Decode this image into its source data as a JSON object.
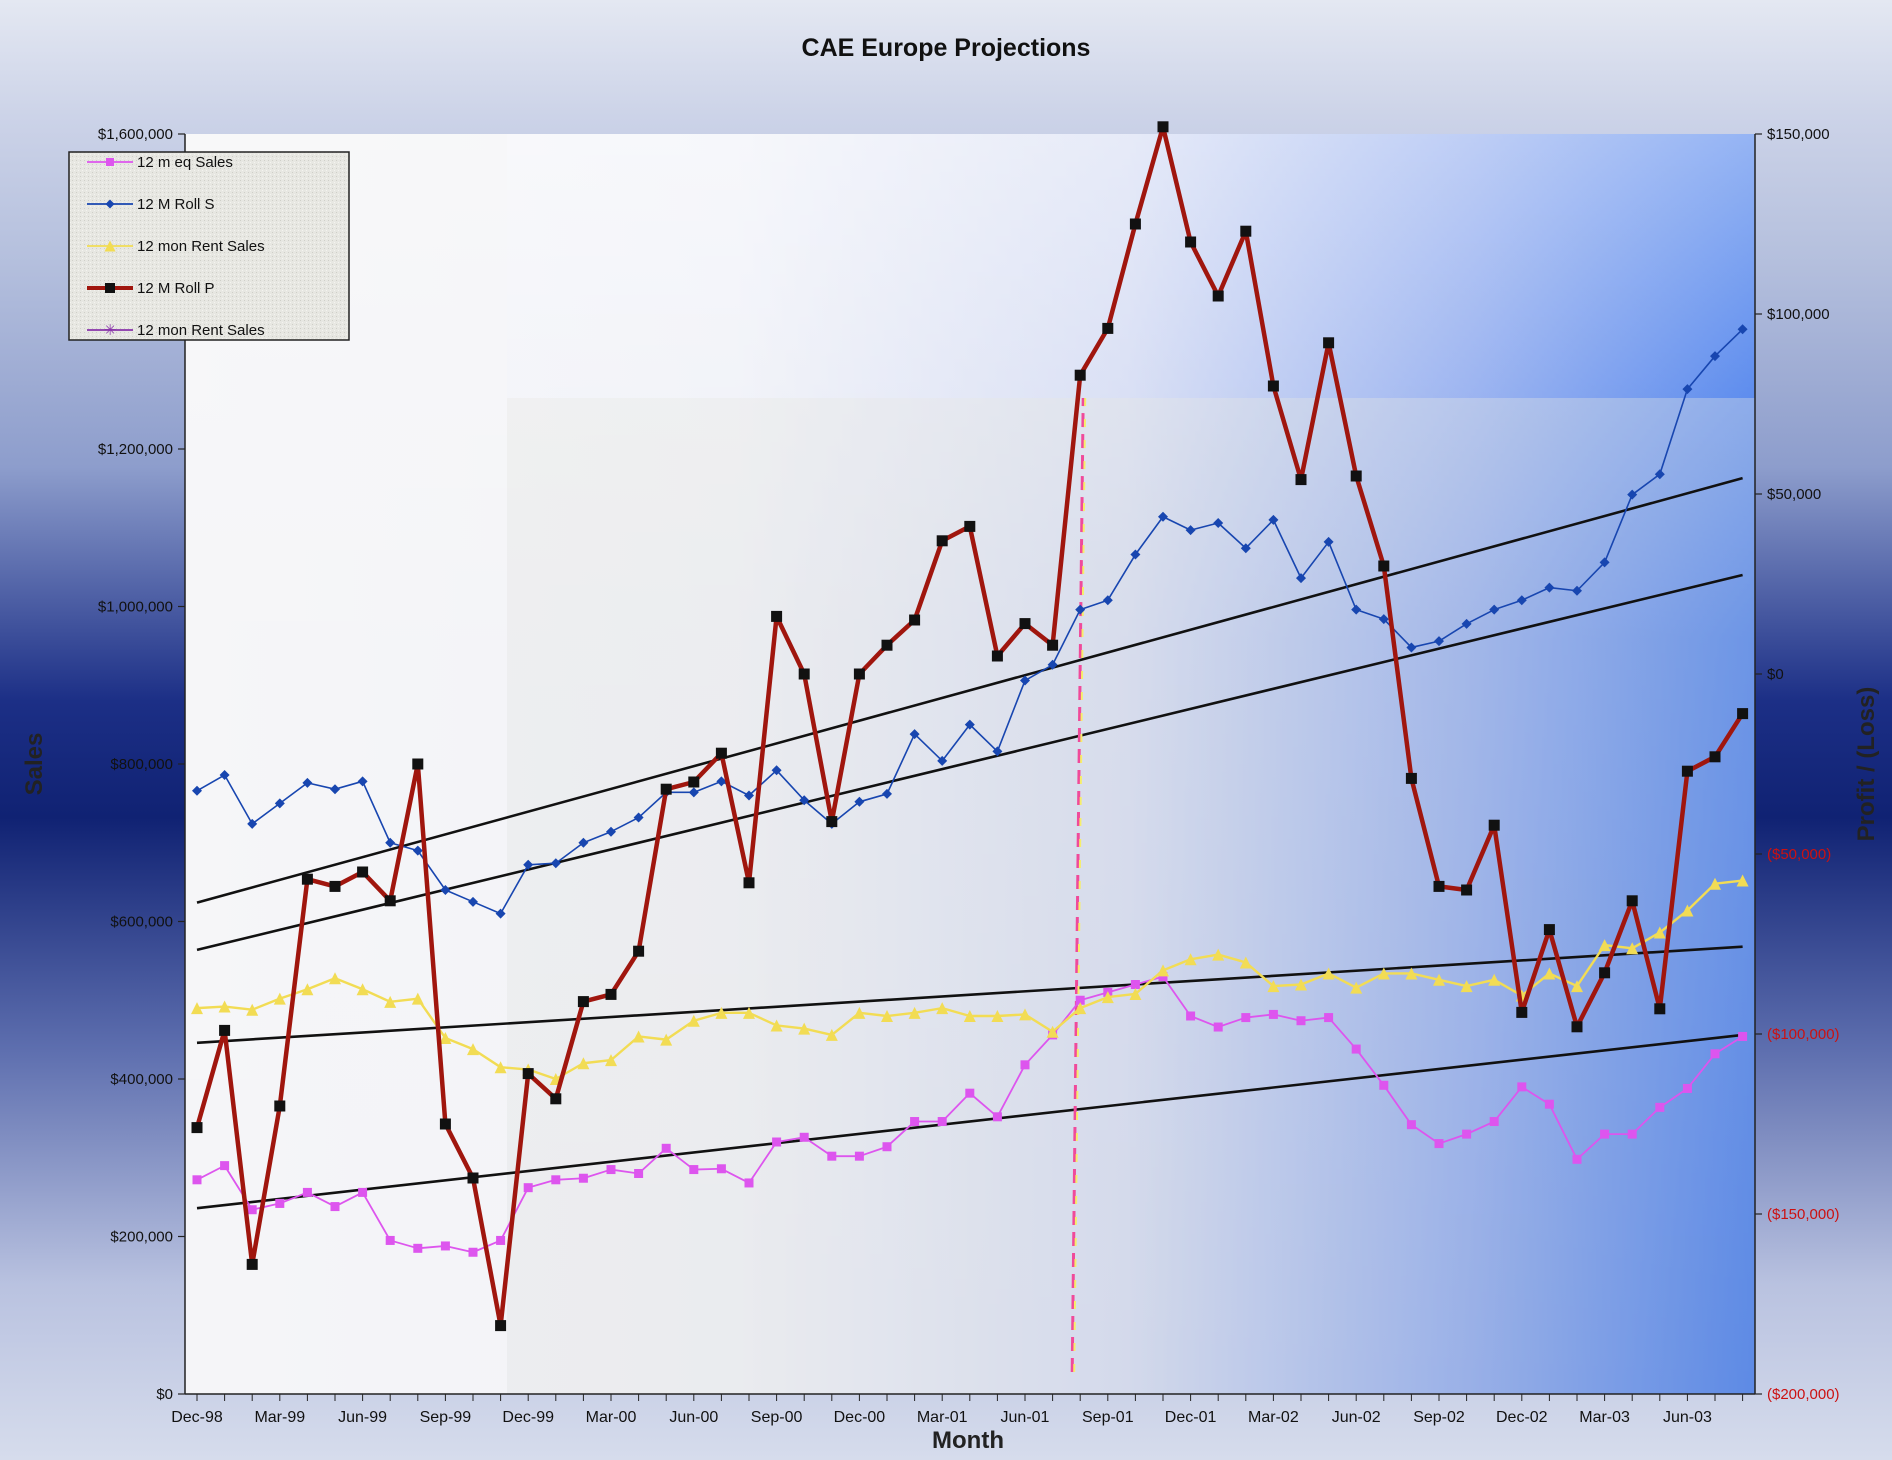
{
  "colors": {
    "eq_sales": "#dd55ee",
    "roll_s": "#1846b0",
    "rent_sales": "#f2dc54",
    "roll_p": "#a0160e",
    "rent_sales_2": "#8833aa",
    "trend": "#111111",
    "negative_tick": "#cc1111"
  },
  "chart_data": {
    "type": "line",
    "title": "CAE Europe Projections",
    "xlabel": "Month",
    "ylabel": "Sales",
    "y2label": "Profit / (Loss)",
    "ylim": [
      0,
      1600000
    ],
    "y2lim": [
      -200000,
      150000
    ],
    "y_ticks": [
      "$0",
      "$200,000",
      "$400,000",
      "$600,000",
      "$800,000",
      "$1,000,000",
      "$1,200,000",
      "$1,600,000"
    ],
    "y2_ticks": [
      "($200,000)",
      "($150,000)",
      "($100,000)",
      "($50,000)",
      "$0",
      "$50,000",
      "$100,000",
      "$150,000"
    ],
    "x_tick_labels": [
      "Dec-98",
      "Mar-99",
      "Jun-99",
      "Sep-99",
      "Dec-99",
      "Mar-00",
      "Jun-00",
      "Sep-00",
      "Dec-00",
      "Mar-01",
      "Jun-01",
      "Sep-01",
      "Dec-01",
      "Mar-02",
      "Jun-02",
      "Sep-02",
      "Dec-02",
      "Mar-03",
      "Jun-03"
    ],
    "x_tick_months": [
      0,
      3,
      6,
      9,
      12,
      15,
      18,
      21,
      24,
      27,
      30,
      33,
      36,
      39,
      42,
      45,
      48,
      51,
      54
    ],
    "legend_position": "top-left",
    "grid": false,
    "series": [
      {
        "name": "12 m eq Sales",
        "axis": "left",
        "values": [
          272000,
          290000,
          234000,
          242000,
          256000,
          238000,
          256000,
          195000,
          185000,
          188000,
          180000,
          195000,
          262000,
          272000,
          274000,
          285000,
          280000,
          312000,
          285000,
          286000,
          268000,
          320000,
          326000,
          302000,
          302000,
          314000,
          346000,
          346000,
          382000,
          352000,
          418000,
          456000,
          500000,
          510000,
          520000,
          530000,
          480000,
          466000,
          478000,
          482000,
          474000,
          478000,
          438000,
          392000,
          342000,
          318000,
          330000,
          346000,
          390000,
          368000,
          298000,
          330000,
          330000,
          364000,
          388000,
          432000,
          454000
        ]
      },
      {
        "name": "12 M Roll S",
        "axis": "left",
        "values": [
          766000,
          786000,
          724000,
          750000,
          776000,
          768000,
          778000,
          700000,
          690000,
          640000,
          625000,
          610000,
          672000,
          674000,
          700000,
          714000,
          732000,
          764000,
          764000,
          778000,
          760000,
          792000,
          754000,
          724000,
          752000,
          762000,
          838000,
          804000,
          850000,
          816000,
          906000,
          926000,
          996000,
          1008000,
          1066000,
          1114000,
          1097000,
          1106000,
          1074000,
          1110000,
          1036000,
          1082000,
          996000,
          984000,
          948000,
          956000,
          978000,
          996000,
          1008000,
          1024000,
          1020000,
          1056000,
          1142000,
          1168000,
          1276000,
          1318000,
          1352000
        ]
      },
      {
        "name": "12 mon Rent Sales",
        "axis": "left",
        "values": [
          490000,
          492000,
          488000,
          502000,
          514000,
          528000,
          514000,
          498000,
          502000,
          452000,
          438000,
          415000,
          412000,
          400000,
          420000,
          424000,
          454000,
          450000,
          474000,
          484000,
          484000,
          468000,
          464000,
          456000,
          484000,
          480000,
          484000,
          490000,
          480000,
          480000,
          482000,
          460000,
          490000,
          504000,
          508000,
          538000,
          552000,
          558000,
          548000,
          518000,
          520000,
          534000,
          516000,
          534000,
          534000,
          526000,
          518000,
          526000,
          506000,
          534000,
          518000,
          570000,
          566000,
          586000,
          614000,
          648000,
          652000
        ]
      },
      {
        "name": "12 M Roll P",
        "axis": "right",
        "values": [
          -126000,
          -99000,
          -164000,
          -120000,
          -57000,
          -59000,
          -55000,
          -63000,
          -25000,
          -125000,
          -140000,
          -181000,
          -111000,
          -118000,
          -91000,
          -89000,
          -77000,
          -32000,
          -30000,
          -22000,
          -58000,
          16000,
          0,
          -41000,
          0,
          8000,
          15000,
          37000,
          41000,
          5000,
          14000,
          8000,
          83000,
          96000,
          125000,
          152000,
          120000,
          105000,
          123000,
          80000,
          54000,
          92000,
          55000,
          30000,
          -29000,
          -59000,
          -60000,
          -42000,
          -94000,
          -71000,
          -98000,
          -83000,
          -63000,
          -93000,
          -27000,
          -23000,
          -11000
        ]
      },
      {
        "name": "12 mon Rent Sales",
        "axis": "right",
        "values": []
      }
    ],
    "trendlines": [
      {
        "of": "12 M Roll S",
        "band": "upper",
        "start": 624000,
        "end": 1163000
      },
      {
        "of": "12 M Roll S",
        "band": "lower",
        "start": 564000,
        "end": 1040000
      },
      {
        "of": "12 mon Rent Sales",
        "band": "upper",
        "start": 446000,
        "end": 568000
      },
      {
        "of": "12 m eq Sales",
        "band": "lower",
        "start": 236000,
        "end": 456000
      }
    ],
    "markers": [
      {
        "kind": "vertical-dashed-line",
        "at_month": 32
      }
    ]
  }
}
